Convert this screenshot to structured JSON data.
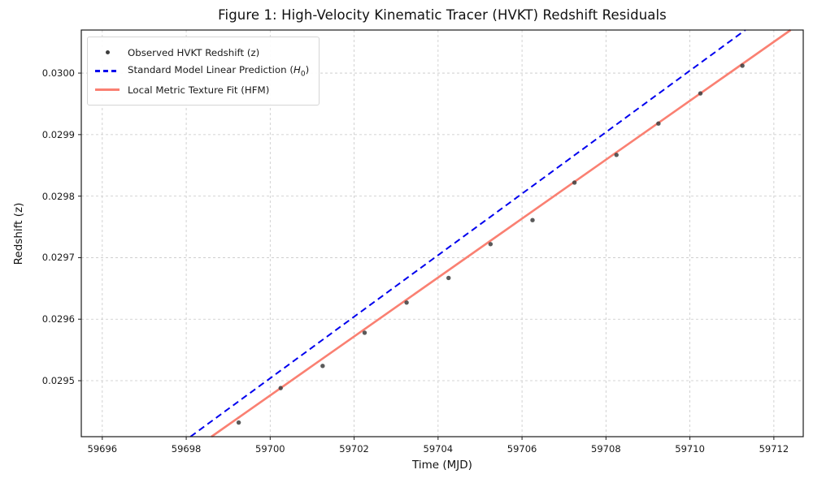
{
  "figure": {
    "title": "Figure 1: High-Velocity Kinematic Tracer (HVKT) Redshift Residuals"
  },
  "axes": {
    "xlabel": "Time (MJD)",
    "ylabel": "Redshift (z)"
  },
  "legend": {
    "items": [
      {
        "label": "Observed HVKT Redshift (z)",
        "swatch": "gray-dot-marker"
      },
      {
        "label_pre": "Standard Model Linear Prediction (",
        "label_var": "H",
        "label_sub": "0",
        "label_post": ")",
        "swatch": "blue-dashed-line"
      },
      {
        "label": "Local Metric Texture Fit (HFM)",
        "swatch": "salmon-solid-line"
      }
    ]
  },
  "colors": {
    "scatter": "#3d3d3d",
    "blue_line": "#0000ee",
    "red_line": "#fa8072",
    "grid": "#c7c7c7",
    "spine": "#1a1a1a"
  },
  "chart_data": {
    "type": "scatter",
    "title": "Figure 1: High-Velocity Kinematic Tracer (HVKT) Redshift Residuals",
    "xlabel": "Time (MJD)",
    "ylabel": "Redshift (z)",
    "xlim": [
      59695.5,
      59712.7
    ],
    "ylim": [
      0.029409,
      0.03007
    ],
    "x_ticks": [
      59696,
      59698,
      59700,
      59702,
      59704,
      59706,
      59708,
      59710,
      59712
    ],
    "y_ticks": [
      0.0295,
      0.0296,
      0.0297,
      0.0298,
      0.0299,
      0.03
    ],
    "grid": true,
    "legend_position": "upper left",
    "series": [
      {
        "name": "Observed HVKT Redshift (z)",
        "type": "scatter",
        "color": "#3d3d3d",
        "x": [
          59699.25,
          59700.25,
          59701.25,
          59702.25,
          59703.25,
          59704.25,
          59705.25,
          59706.25,
          59707.25,
          59708.25,
          59709.25,
          59710.25,
          59711.25
        ],
        "y": [
          0.029432,
          0.029488,
          0.029524,
          0.029578,
          0.029627,
          0.029667,
          0.029722,
          0.029761,
          0.029822,
          0.029867,
          0.029918,
          0.029967,
          0.030012
        ]
      },
      {
        "name": "Standard Model Linear Prediction (H0)",
        "type": "line",
        "style": "dashed",
        "color": "#0000ee",
        "slope_per_day": 5e-05,
        "x": [
          59698.1,
          59711.32
        ],
        "y": [
          0.029409,
          0.03007
        ]
      },
      {
        "name": "Local Metric Texture Fit (HFM)",
        "type": "line",
        "style": "solid",
        "color": "#fa8072",
        "slope_per_day": 4.79e-05,
        "x": [
          59698.6,
          59712.4
        ],
        "y": [
          0.029409,
          0.03007
        ]
      }
    ]
  }
}
